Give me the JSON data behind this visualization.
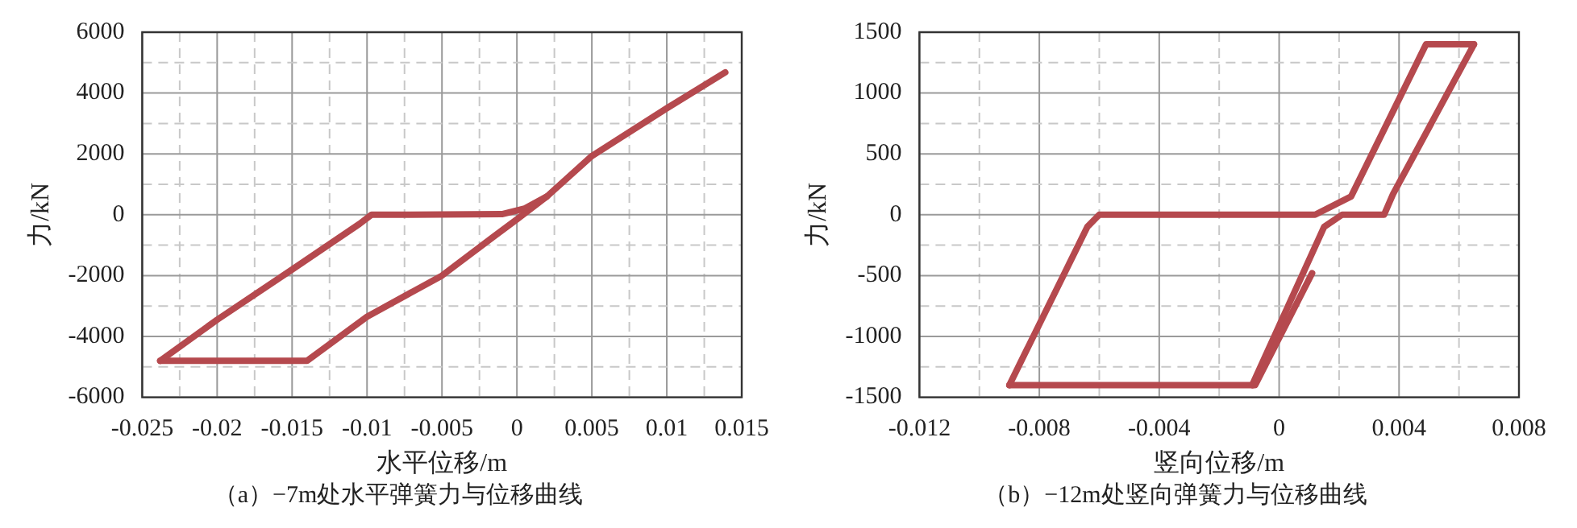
{
  "chart_data": [
    {
      "type": "line",
      "title": "（a）−7m处水平弹簧力与位移曲线",
      "xlabel": "水平位移/m",
      "ylabel": "力/kN",
      "grid": true,
      "legend": false,
      "marker": "none",
      "line_style": "solid",
      "xlim": [
        -0.025,
        0.015
      ],
      "xticks": [
        -0.025,
        {
          "value": -0.0225,
          "label": null
        },
        -0.02,
        {
          "value": -0.0175,
          "label": null
        },
        -0.015,
        {
          "value": -0.0125,
          "label": null
        },
        -0.01,
        {
          "value": -0.0075,
          "label": null
        },
        -0.005,
        {
          "value": -0.0025,
          "label": null
        },
        0,
        {
          "value": 0.0025,
          "label": null
        },
        0.005,
        {
          "value": 0.0075,
          "label": null
        },
        0.01,
        {
          "value": 0.0125,
          "label": null
        },
        0.015
      ],
      "ylim": [
        -6000,
        6000
      ],
      "yticks": [
        -6000,
        {
          "value": -5000,
          "label": null
        },
        -4000,
        {
          "value": -3000,
          "label": null
        },
        -2000,
        {
          "value": -1000,
          "label": null
        },
        0,
        {
          "value": 1000,
          "label": null
        },
        2000,
        {
          "value": 3000,
          "label": null
        },
        4000,
        {
          "value": 5000,
          "label": null
        },
        6000
      ],
      "series": [
        {
          "color": "#b5494e",
          "x": [
            0.0139,
            0.01,
            0.005,
            0.002,
            0.0005,
            -0.001,
            -0.008,
            -0.0097,
            -0.0105,
            -0.015,
            -0.02,
            -0.0238
          ],
          "values": [
            4680,
            3500,
            1930,
            600,
            200,
            20,
            0,
            0,
            -300,
            -1800,
            -3450,
            -4800
          ]
        },
        {
          "color": "#b5494e",
          "x": [
            -0.0238,
            -0.014,
            -0.01,
            -0.005,
            -0.0015,
            0,
            0.002
          ],
          "values": [
            -4800,
            -4800,
            -3350,
            -2000,
            -700,
            -150,
            600
          ]
        }
      ]
    },
    {
      "type": "line",
      "title": "（b）−12m处竖向弹簧力与位移曲线",
      "xlabel": "竖向位移/m",
      "ylabel": "力/kN",
      "grid": true,
      "legend": false,
      "marker": "none",
      "line_style": "solid",
      "xlim": [
        -0.012,
        0.008
      ],
      "xticks": [
        -0.012,
        {
          "value": -0.01,
          "label": null
        },
        -0.008,
        {
          "value": -0.006,
          "label": null
        },
        -0.004,
        {
          "value": -0.002,
          "label": null
        },
        0,
        {
          "value": 0.002,
          "label": null
        },
        0.004,
        {
          "value": 0.006,
          "label": null
        },
        0.008
      ],
      "ylim": [
        -1500,
        1500
      ],
      "yticks": [
        -1500,
        {
          "value": -1250,
          "label": null
        },
        -1000,
        {
          "value": -750,
          "label": null
        },
        -500,
        {
          "value": -250,
          "label": null
        },
        0,
        {
          "value": 250,
          "label": null
        },
        500,
        {
          "value": 750,
          "label": null
        },
        1000,
        {
          "value": 1250,
          "label": null
        },
        1500
      ],
      "series": [
        {
          "color": "#b5494e",
          "x": [
            0.0011,
            -0.0008,
            -0.009
          ],
          "values": [
            -480,
            -1400,
            -1400
          ]
        },
        {
          "color": "#b5494e",
          "x": [
            -0.009,
            -0.0064,
            -0.006,
            0.0012,
            0.0024,
            0.0049,
            0.0065
          ],
          "values": [
            -1400,
            -100,
            0,
            0,
            150,
            1400,
            1400
          ]
        },
        {
          "color": "#b5494e",
          "x": [
            0.0065,
            0.0038,
            0.0035,
            0.0021,
            0.0015,
            -0.0009
          ],
          "values": [
            1400,
            170,
            0,
            0,
            -100,
            -1400
          ]
        }
      ]
    }
  ]
}
